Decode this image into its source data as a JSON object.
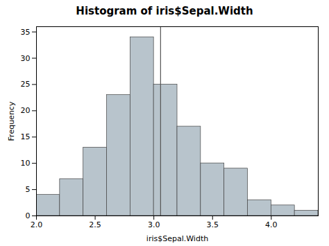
{
  "chart_data": {
    "type": "histogram",
    "title": "Histogram of iris$Sepal.Width",
    "xlabel": "iris$Sepal.Width",
    "ylabel": "Frequency",
    "bins": [
      2.0,
      2.2,
      2.4,
      2.6,
      2.8,
      3.0,
      3.2,
      3.4,
      3.6,
      3.8,
      4.0,
      4.2,
      4.4
    ],
    "values": [
      4,
      7,
      13,
      23,
      34,
      25,
      17,
      10,
      9,
      3,
      2,
      1
    ],
    "color": "#b8c4cc",
    "vline": {
      "x": 3.057333,
      "color": "#555555"
    },
    "xlim": [
      2.0,
      4.4
    ],
    "xticks": [
      {
        "value": 2.0,
        "label": "2.0"
      },
      2.5,
      {
        "value": 3.0,
        "label": "3.0"
      },
      3.5,
      {
        "value": 4.0,
        "label": "4.0"
      }
    ],
    "ylim": [
      0,
      36
    ],
    "yticks": [
      0,
      5,
      10,
      15,
      20,
      25,
      30,
      35
    ],
    "grid": false
  }
}
